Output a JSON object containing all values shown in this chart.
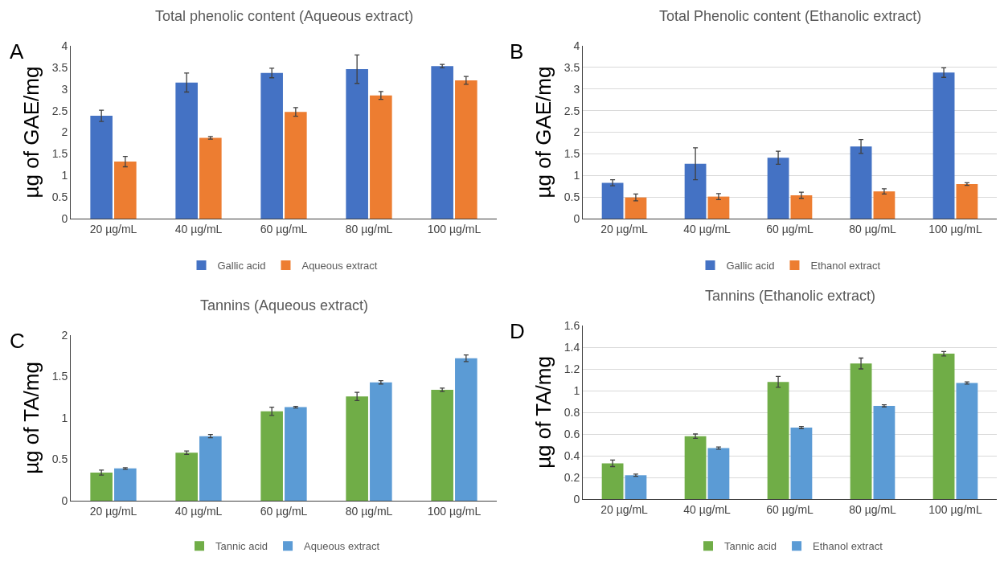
{
  "chart_data": [
    {
      "type": "bar",
      "title": "Total phenolic content (Aqueous extract)",
      "ylabel": "µg of GAE/mg",
      "annotations": [
        "A"
      ],
      "categories": [
        "20 µg/mL",
        "40 µg/mL",
        "60 µg/mL",
        "80 µg/mL",
        "100 µg/mL"
      ],
      "ylim": [
        0,
        4
      ],
      "yticks": [
        0,
        0.5,
        1,
        1.5,
        2,
        2.5,
        3,
        3.5,
        4
      ],
      "legend": "bottom",
      "series": [
        {
          "name": "Gallic acid",
          "color": "#4472c4",
          "values": [
            2.38,
            3.15,
            3.37,
            3.46,
            3.53
          ],
          "errors": [
            0.13,
            0.22,
            0.11,
            0.33,
            0.04
          ]
        },
        {
          "name": "Aqueous extract",
          "color": "#ed7d31",
          "values": [
            1.32,
            1.87,
            2.47,
            2.85,
            3.2
          ],
          "errors": [
            0.12,
            0.03,
            0.1,
            0.09,
            0.09
          ]
        }
      ]
    },
    {
      "type": "bar",
      "title": "Total Phenolic content (Ethanolic extract)",
      "ylabel": "µg of GAE/mg",
      "annotations": [
        "B"
      ],
      "categories": [
        "20 µg/mL",
        "40 µg/mL",
        "60 µg/mL",
        "80 µg/mL",
        "100 µg/mL"
      ],
      "ylim": [
        0,
        4
      ],
      "yticks": [
        0,
        0.5,
        1,
        1.5,
        2,
        2.5,
        3,
        3.5,
        4
      ],
      "grid": "y",
      "legend": "bottom",
      "series": [
        {
          "name": "Gallic acid",
          "color": "#4472c4",
          "values": [
            0.83,
            1.27,
            1.41,
            1.67,
            3.38
          ],
          "errors": [
            0.07,
            0.37,
            0.15,
            0.16,
            0.11
          ]
        },
        {
          "name": "Ethanol extract",
          "color": "#ed7d31",
          "values": [
            0.49,
            0.51,
            0.54,
            0.63,
            0.8
          ],
          "errors": [
            0.08,
            0.07,
            0.07,
            0.06,
            0.03
          ]
        }
      ]
    },
    {
      "type": "bar",
      "title": "Tannins (Aqueous extract)",
      "ylabel": "µg of TA/mg",
      "annotations": [
        "C"
      ],
      "categories": [
        "20 µg/mL",
        "40 µg/mL",
        "60 µg/mL",
        "80 µg/mL",
        "100 µg/mL"
      ],
      "ylim": [
        0,
        2
      ],
      "yticks": [
        0,
        0.5,
        1,
        1.5,
        2
      ],
      "legend": "bottom",
      "series": [
        {
          "name": "Tannic acid",
          "color": "#70ad47",
          "values": [
            0.34,
            0.58,
            1.08,
            1.26,
            1.34
          ],
          "errors": [
            0.03,
            0.02,
            0.05,
            0.05,
            0.02
          ]
        },
        {
          "name": "Aqueous extract",
          "color": "#5b9bd5",
          "values": [
            0.39,
            0.78,
            1.13,
            1.43,
            1.72
          ],
          "errors": [
            0.01,
            0.02,
            0.01,
            0.02,
            0.04
          ]
        }
      ]
    },
    {
      "type": "bar",
      "title": "Tannins (Ethanolic extract)",
      "ylabel": "µg of TA/mg",
      "annotations": [
        "D"
      ],
      "categories": [
        "20 µg/mL",
        "40 µg/mL",
        "60 µg/mL",
        "80 µg/mL",
        "100 µg/mL"
      ],
      "ylim": [
        0,
        1.6
      ],
      "yticks": [
        0,
        0.2,
        0.4,
        0.6,
        0.8,
        1,
        1.2,
        1.4,
        1.6
      ],
      "grid": "y",
      "legend": "bottom",
      "series": [
        {
          "name": "Tannic acid",
          "color": "#70ad47",
          "values": [
            0.33,
            0.58,
            1.08,
            1.25,
            1.34
          ],
          "errors": [
            0.03,
            0.02,
            0.05,
            0.05,
            0.02
          ]
        },
        {
          "name": "Ethanol extract",
          "color": "#5b9bd5",
          "values": [
            0.22,
            0.47,
            0.66,
            0.86,
            1.07
          ],
          "errors": [
            0.01,
            0.01,
            0.01,
            0.01,
            0.01
          ]
        }
      ]
    }
  ]
}
